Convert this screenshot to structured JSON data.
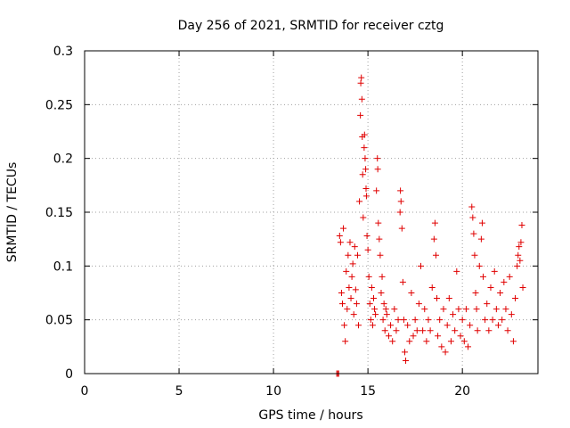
{
  "chart_data": {
    "type": "scatter",
    "title": "Day 256 of 2021, SRMTID for receiver cztg",
    "xlabel": "GPS time / hours",
    "ylabel": "SRMTID / TECUs",
    "xlim": [
      0,
      24
    ],
    "ylim": [
      0,
      0.3
    ],
    "x_ticks": [
      0,
      5,
      10,
      15,
      20
    ],
    "x_tick_labels": [
      "0",
      "5",
      "10",
      "15",
      "20"
    ],
    "y_ticks": [
      0,
      0.05,
      0.1,
      0.15,
      0.2,
      0.25,
      0.3
    ],
    "y_tick_labels": [
      "0",
      "0.05",
      "0.1",
      "0.15",
      "0.2",
      "0.25",
      "0.3"
    ],
    "grid": true,
    "marker": "plus",
    "series": [
      {
        "name": "SRMTID",
        "color": "#e00000",
        "points": [
          [
            13.35,
            0.0
          ],
          [
            13.4,
            0.0
          ],
          [
            13.45,
            0.0
          ],
          [
            13.5,
            0.128
          ],
          [
            13.55,
            0.122
          ],
          [
            13.6,
            0.075
          ],
          [
            13.65,
            0.065
          ],
          [
            13.7,
            0.135
          ],
          [
            13.75,
            0.045
          ],
          [
            13.8,
            0.03
          ],
          [
            13.85,
            0.095
          ],
          [
            13.9,
            0.06
          ],
          [
            13.95,
            0.11
          ],
          [
            14.0,
            0.08
          ],
          [
            14.05,
            0.122
          ],
          [
            14.1,
            0.07
          ],
          [
            14.15,
            0.09
          ],
          [
            14.2,
            0.102
          ],
          [
            14.25,
            0.055
          ],
          [
            14.3,
            0.118
          ],
          [
            14.35,
            0.078
          ],
          [
            14.4,
            0.065
          ],
          [
            14.45,
            0.11
          ],
          [
            14.5,
            0.045
          ],
          [
            14.55,
            0.16
          ],
          [
            14.6,
            0.24
          ],
          [
            14.62,
            0.27
          ],
          [
            14.65,
            0.275
          ],
          [
            14.68,
            0.255
          ],
          [
            14.7,
            0.22
          ],
          [
            14.72,
            0.185
          ],
          [
            14.75,
            0.145
          ],
          [
            14.8,
            0.21
          ],
          [
            14.82,
            0.222
          ],
          [
            14.85,
            0.2
          ],
          [
            14.88,
            0.19
          ],
          [
            14.9,
            0.172
          ],
          [
            14.92,
            0.165
          ],
          [
            14.95,
            0.128
          ],
          [
            15.0,
            0.115
          ],
          [
            15.05,
            0.09
          ],
          [
            15.1,
            0.065
          ],
          [
            15.15,
            0.05
          ],
          [
            15.2,
            0.08
          ],
          [
            15.25,
            0.045
          ],
          [
            15.3,
            0.07
          ],
          [
            15.35,
            0.06
          ],
          [
            15.4,
            0.055
          ],
          [
            15.45,
            0.17
          ],
          [
            15.5,
            0.2
          ],
          [
            15.52,
            0.19
          ],
          [
            15.55,
            0.14
          ],
          [
            15.6,
            0.125
          ],
          [
            15.65,
            0.11
          ],
          [
            15.7,
            0.075
          ],
          [
            15.75,
            0.09
          ],
          [
            15.8,
            0.05
          ],
          [
            15.85,
            0.065
          ],
          [
            15.9,
            0.04
          ],
          [
            15.95,
            0.06
          ],
          [
            16.0,
            0.055
          ],
          [
            16.1,
            0.035
          ],
          [
            16.2,
            0.045
          ],
          [
            16.3,
            0.03
          ],
          [
            16.4,
            0.06
          ],
          [
            16.5,
            0.04
          ],
          [
            16.6,
            0.05
          ],
          [
            16.7,
            0.15
          ],
          [
            16.72,
            0.17
          ],
          [
            16.75,
            0.16
          ],
          [
            16.8,
            0.135
          ],
          [
            16.85,
            0.085
          ],
          [
            16.9,
            0.05
          ],
          [
            16.95,
            0.02
          ],
          [
            17.0,
            0.012
          ],
          [
            17.1,
            0.045
          ],
          [
            17.2,
            0.03
          ],
          [
            17.3,
            0.075
          ],
          [
            17.4,
            0.035
          ],
          [
            17.5,
            0.05
          ],
          [
            17.6,
            0.04
          ],
          [
            17.7,
            0.065
          ],
          [
            17.8,
            0.1
          ],
          [
            17.9,
            0.04
          ],
          [
            18.0,
            0.06
          ],
          [
            18.1,
            0.03
          ],
          [
            18.2,
            0.05
          ],
          [
            18.3,
            0.04
          ],
          [
            18.4,
            0.08
          ],
          [
            18.5,
            0.125
          ],
          [
            18.55,
            0.14
          ],
          [
            18.6,
            0.11
          ],
          [
            18.65,
            0.07
          ],
          [
            18.7,
            0.035
          ],
          [
            18.8,
            0.05
          ],
          [
            18.9,
            0.025
          ],
          [
            19.0,
            0.06
          ],
          [
            19.1,
            0.02
          ],
          [
            19.2,
            0.045
          ],
          [
            19.3,
            0.07
          ],
          [
            19.4,
            0.03
          ],
          [
            19.5,
            0.055
          ],
          [
            19.6,
            0.04
          ],
          [
            19.7,
            0.095
          ],
          [
            19.8,
            0.06
          ],
          [
            19.9,
            0.035
          ],
          [
            20.0,
            0.05
          ],
          [
            20.1,
            0.03
          ],
          [
            20.2,
            0.06
          ],
          [
            20.3,
            0.025
          ],
          [
            20.4,
            0.045
          ],
          [
            20.5,
            0.155
          ],
          [
            20.55,
            0.145
          ],
          [
            20.6,
            0.13
          ],
          [
            20.65,
            0.11
          ],
          [
            20.7,
            0.075
          ],
          [
            20.75,
            0.06
          ],
          [
            20.8,
            0.04
          ],
          [
            20.9,
            0.1
          ],
          [
            21.0,
            0.125
          ],
          [
            21.05,
            0.14
          ],
          [
            21.1,
            0.09
          ],
          [
            21.2,
            0.05
          ],
          [
            21.3,
            0.065
          ],
          [
            21.4,
            0.04
          ],
          [
            21.5,
            0.08
          ],
          [
            21.6,
            0.05
          ],
          [
            21.7,
            0.095
          ],
          [
            21.8,
            0.06
          ],
          [
            21.9,
            0.045
          ],
          [
            22.0,
            0.075
          ],
          [
            22.1,
            0.05
          ],
          [
            22.2,
            0.085
          ],
          [
            22.3,
            0.06
          ],
          [
            22.4,
            0.04
          ],
          [
            22.5,
            0.09
          ],
          [
            22.6,
            0.055
          ],
          [
            22.7,
            0.03
          ],
          [
            22.8,
            0.07
          ],
          [
            22.9,
            0.1
          ],
          [
            22.95,
            0.11
          ],
          [
            23.0,
            0.118
          ],
          [
            23.05,
            0.105
          ],
          [
            23.1,
            0.122
          ],
          [
            23.15,
            0.138
          ],
          [
            23.2,
            0.08
          ]
        ]
      }
    ]
  }
}
